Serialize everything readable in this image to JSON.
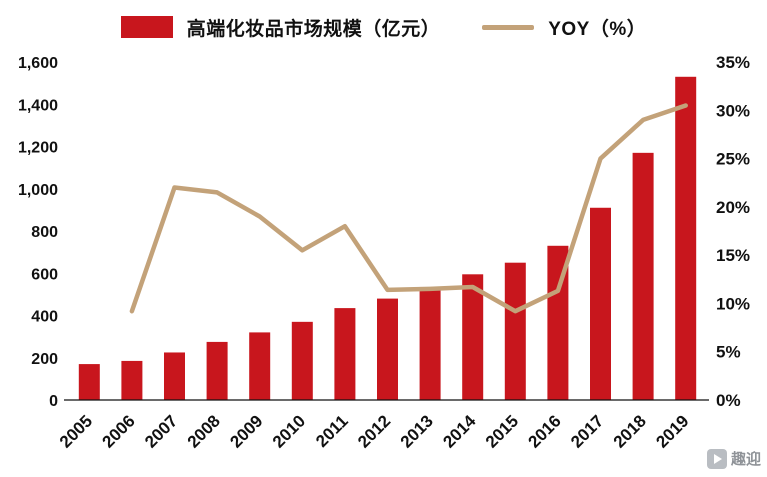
{
  "chart_data": {
    "type": "bar",
    "title": "",
    "categories": [
      "2005",
      "2006",
      "2007",
      "2008",
      "2009",
      "2010",
      "2011",
      "2012",
      "2013",
      "2014",
      "2015",
      "2016",
      "2017",
      "2018",
      "2019"
    ],
    "series": [
      {
        "name": "高端化妆品市场规模（亿元）",
        "type": "bar",
        "axis": "left",
        "color": "#C8161D",
        "values": [
          170,
          185,
          225,
          275,
          320,
          370,
          435,
          480,
          535,
          595,
          650,
          730,
          910,
          1170,
          1530
        ]
      },
      {
        "name": "YOY（%）",
        "type": "line",
        "axis": "right",
        "color": "#C3A279",
        "values": [
          null,
          9.2,
          22,
          21.5,
          19,
          15.5,
          18,
          11.4,
          11.5,
          11.7,
          9.2,
          11.3,
          25,
          29,
          30.5
        ]
      }
    ],
    "left_axis": {
      "min": 0,
      "max": 1600,
      "step": 200
    },
    "right_axis": {
      "min": 0,
      "max": 35,
      "step": 5,
      "suffix": "%"
    },
    "grid": false,
    "legend_position": "top"
  },
  "legend": {
    "bar_label": "高端化妆品市场规模（亿元）",
    "line_label": "YOY（%）"
  },
  "watermark": {
    "text": "趣迎"
  }
}
